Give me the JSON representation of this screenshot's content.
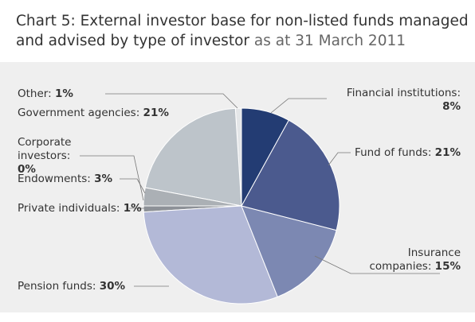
{
  "chart_data": {
    "type": "pie",
    "title": "Chart 5: External investor base for non-listed funds managed and advised by type of investor",
    "subtitle": "as at 31 March 2011",
    "categories": [
      "Financial institutions:",
      "Fund of funds:",
      "Insurance companies:",
      "Pension funds:",
      "Private individuals:",
      "Endowments:",
      "Corporate investors:",
      "Government agencies:",
      "Other:"
    ],
    "values": [
      8,
      21,
      15,
      30,
      1,
      3,
      0,
      21,
      1
    ],
    "value_labels": [
      "8%",
      "21%",
      "15%",
      "30%",
      "1%",
      "3%",
      "0%",
      "21%",
      "1%"
    ],
    "colors": [
      "#233c73",
      "#4b5a8e",
      "#7c88b2",
      "#b3b9d7",
      "#8d9197",
      "#abb0b5",
      "#c4c8cc",
      "#bdc4ca",
      "#e4e6e8"
    ]
  }
}
